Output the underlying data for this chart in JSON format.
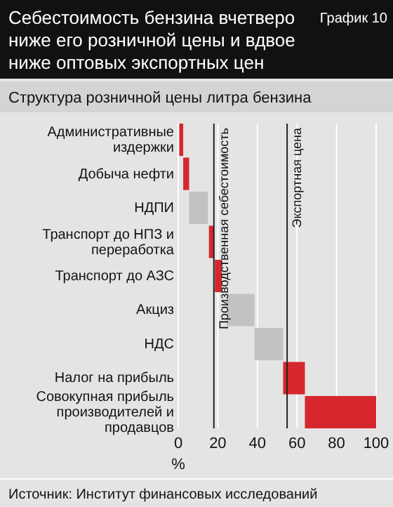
{
  "chart_data": {
    "type": "bar",
    "orientation": "horizontal",
    "title": "Себестоимость бензина вчетверо ниже его розничной цены и вдвое ниже оптовых экспортных цен",
    "subtitle": "Структура розничной цены литра бензина",
    "xlabel": "%",
    "categories": [
      "Административные издержки",
      "Добыча нефти",
      "НДПИ",
      "Транспорт до НПЗ и переработка",
      "Транспорт до АЗС",
      "Акциз",
      "НДС",
      "Налог на прибыль",
      "Совокупная прибыль производителей и продавцов"
    ],
    "values": [
      2,
      3,
      9.5,
      2.5,
      3.5,
      14,
      14.5,
      11,
      36
    ],
    "base": [
      0.5,
      2.5,
      5.5,
      15.5,
      18.5,
      24.5,
      38.5,
      53,
      64
    ],
    "colors": [
      "#d7272e",
      "#d7272e",
      "#c2c2c2",
      "#d7272e",
      "#d7272e",
      "#c2c2c2",
      "#c2c2c2",
      "#d7272e",
      "#d7272e"
    ],
    "xlim": [
      0,
      100
    ],
    "xticks": [
      0,
      20,
      40,
      60,
      80,
      100
    ],
    "grid": "x",
    "ref_lines": [
      {
        "axis": "x",
        "value": 18,
        "label": "Производственная себестоимость",
        "color": "#222222"
      },
      {
        "axis": "x",
        "value": 55,
        "label": "Экспортная цена",
        "color": "#222222"
      }
    ],
    "annotations": [
      "График 10",
      "Источник: Институт финансовых исследований"
    ]
  }
}
